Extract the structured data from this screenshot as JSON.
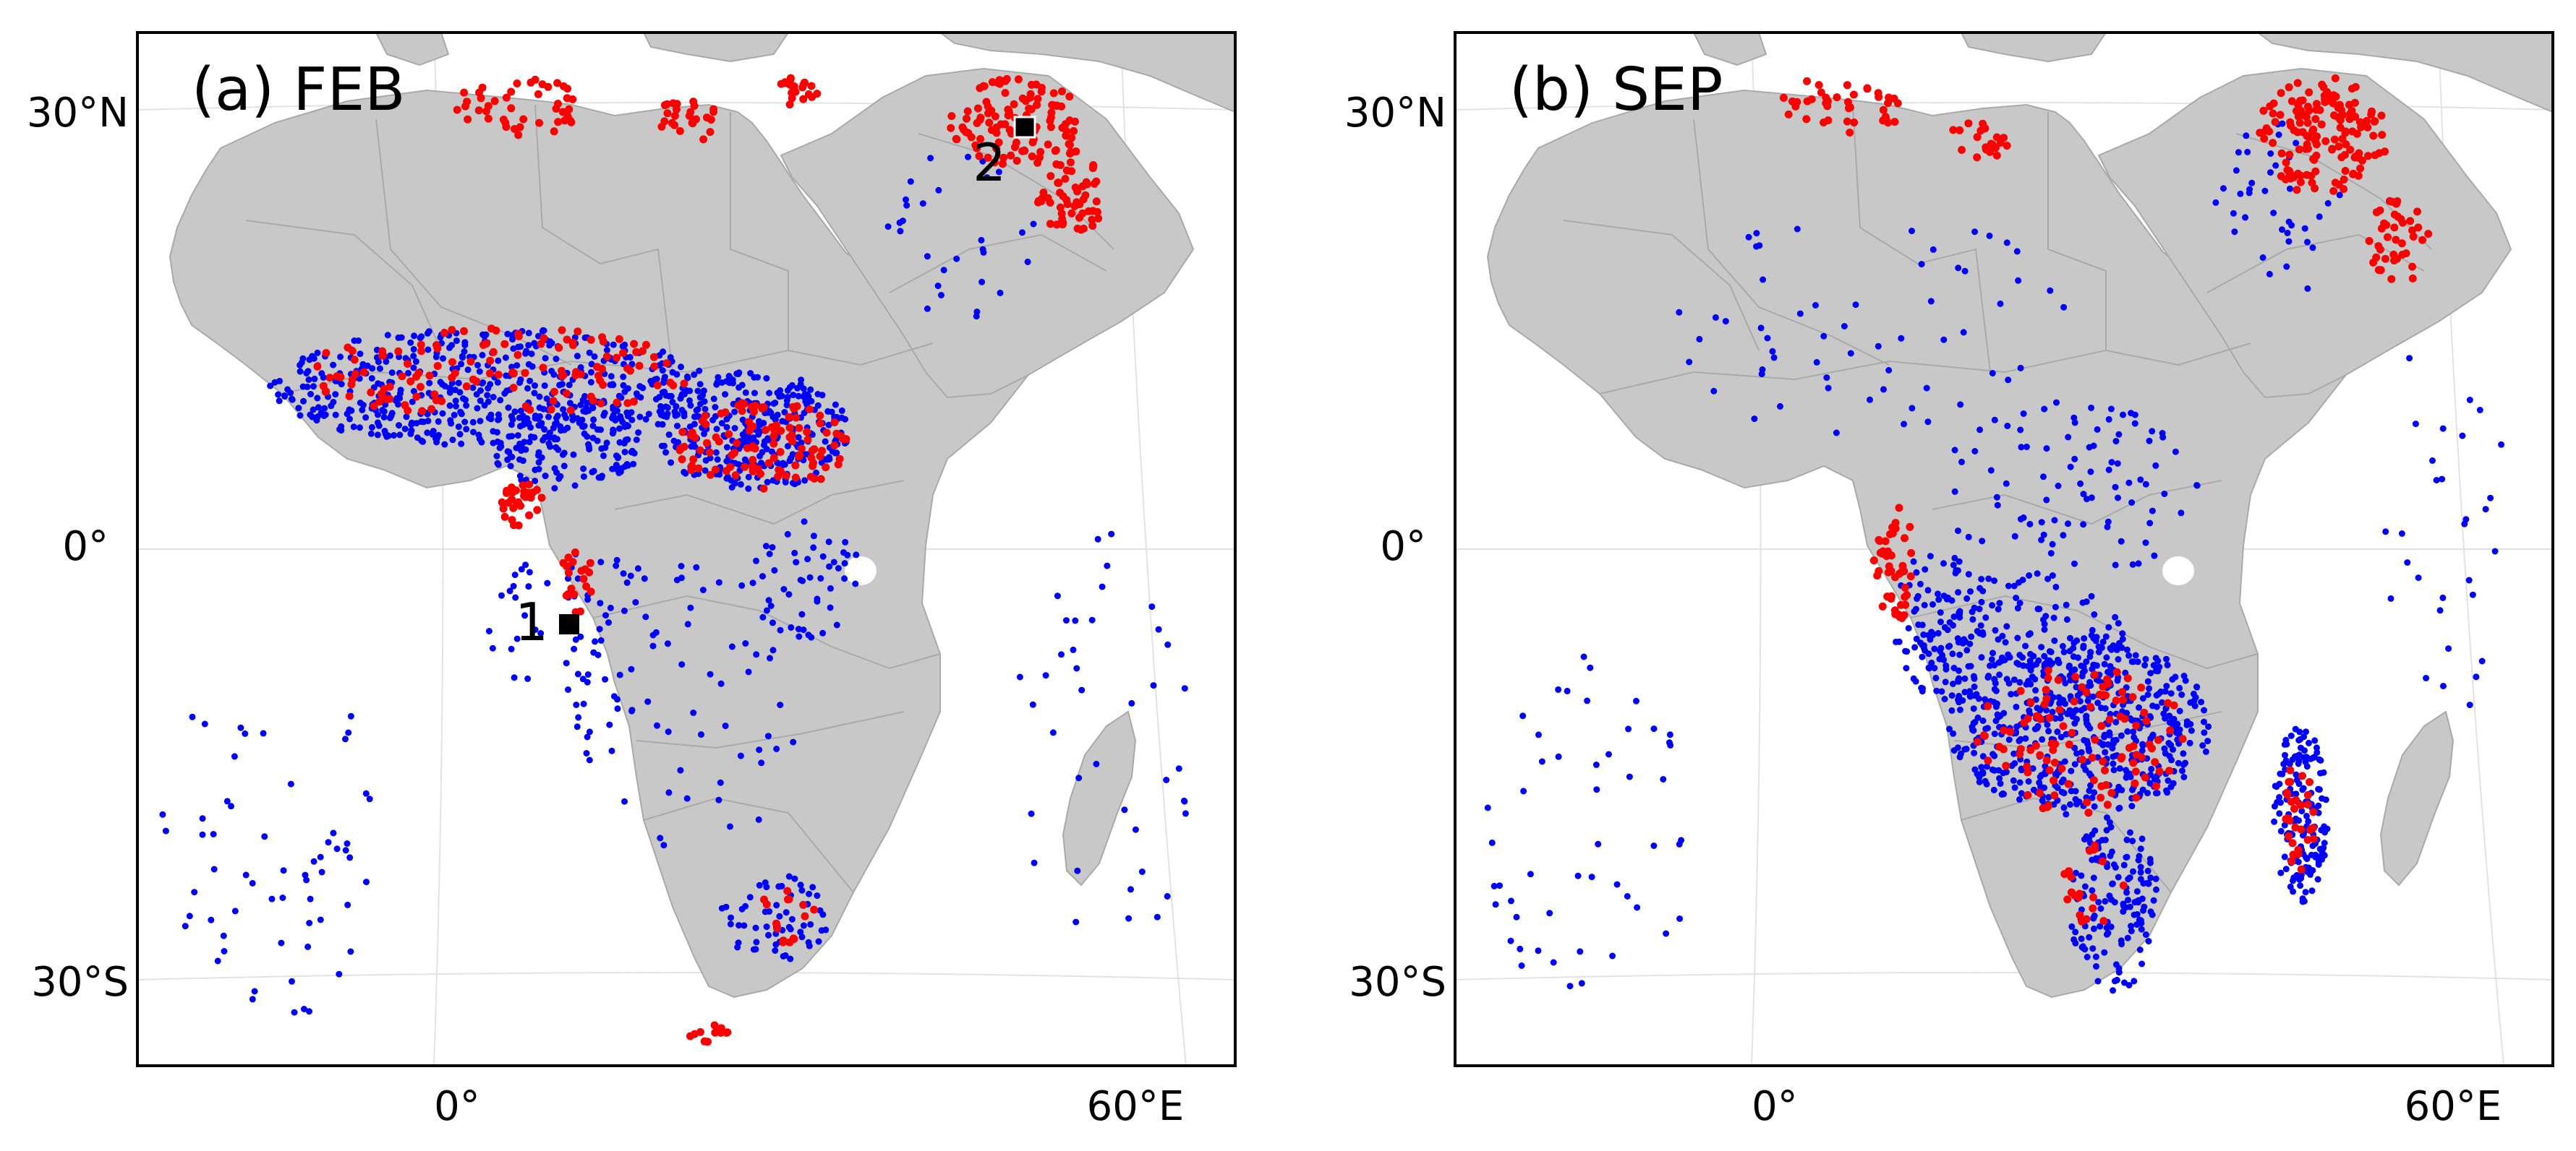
{
  "panels": [
    {
      "id": "a",
      "title": "(a) FEB",
      "lat_labels": [
        "30°N",
        "0°",
        "30°S"
      ],
      "lon_labels": [
        "0°",
        "60°E"
      ],
      "markers": [
        {
          "label": "1",
          "lon": 9.0,
          "lat": -5.0
        },
        {
          "label": "2",
          "lon": 51.0,
          "lat": 29.0
        }
      ]
    },
    {
      "id": "b",
      "title": "(b) SEP",
      "lat_labels": [
        "30°N",
        "0°",
        "30°S"
      ],
      "lon_labels": [
        "0°",
        "60°E"
      ],
      "markers": []
    }
  ],
  "colors": {
    "land": "#c8c8c8",
    "ocean": "#ffffff",
    "border": "#a9a9a9",
    "red_points": "#ff0000",
    "blue_points": "#0000ff",
    "frame": "#000000"
  },
  "extent": {
    "lon_min": -30,
    "lon_max": 70,
    "lat_min": -36,
    "lat_max": 34
  },
  "fire_clusters": {
    "a": [
      {
        "color": "blue",
        "lon": 2,
        "lat": 10,
        "rlon": 20,
        "rlat": 4,
        "n": 520
      },
      {
        "color": "blue",
        "lon": 26,
        "lat": 7,
        "rlon": 9,
        "rlat": 4,
        "n": 320
      },
      {
        "color": "blue",
        "lon": 9,
        "lat": 6,
        "rlon": 7,
        "rlat": 3,
        "n": 140
      },
      {
        "color": "blue",
        "lon": 10,
        "lat": -6,
        "rlon": 8,
        "rlat": 6,
        "n": 60
      },
      {
        "color": "blue",
        "lon": 31,
        "lat": -3,
        "rlon": 5,
        "rlat": 4,
        "n": 50
      },
      {
        "color": "blue",
        "lon": 28,
        "lat": -26,
        "rlon": 5,
        "rlat": 3,
        "n": 60
      },
      {
        "color": "blue",
        "lon": 20,
        "lat": -12,
        "rlon": 10,
        "rlat": 10,
        "n": 60
      },
      {
        "color": "blue",
        "lon": -18,
        "lat": -20,
        "rlon": 10,
        "rlat": 14,
        "n": 60
      },
      {
        "color": "blue",
        "lon": 58,
        "lat": -14,
        "rlon": 8,
        "rlat": 16,
        "n": 40
      },
      {
        "color": "blue",
        "lon": 45,
        "lat": 20,
        "rlon": 8,
        "rlat": 6,
        "n": 30
      },
      {
        "color": "red",
        "lon": 3,
        "lat": 11,
        "rlon": 18,
        "rlat": 3,
        "n": 130
      },
      {
        "color": "red",
        "lon": 27,
        "lat": 6,
        "rlon": 8,
        "rlat": 3,
        "n": 110
      },
      {
        "color": "red",
        "lon": 5,
        "lat": 2,
        "rlon": 2,
        "rlat": 1.5,
        "n": 30
      },
      {
        "color": "red",
        "lon": 10,
        "lat": -3,
        "rlon": 1.5,
        "rlat": 2.5,
        "n": 20
      },
      {
        "color": "red",
        "lon": 50,
        "lat": 28,
        "rlon": 6,
        "rlat": 3,
        "n": 110
      },
      {
        "color": "red",
        "lon": 55,
        "lat": 23,
        "rlon": 3,
        "rlat": 3,
        "n": 60
      },
      {
        "color": "red",
        "lon": 5,
        "lat": 29,
        "rlon": 6,
        "rlat": 2,
        "n": 45
      },
      {
        "color": "red",
        "lon": 20,
        "lat": 28,
        "rlon": 3,
        "rlat": 1.5,
        "n": 25
      },
      {
        "color": "red",
        "lon": 30,
        "lat": 30,
        "rlon": 2,
        "rlat": 1,
        "n": 20
      },
      {
        "color": "red",
        "lon": 29,
        "lat": -26,
        "rlon": 3,
        "rlat": 2,
        "n": 15
      },
      {
        "color": "red",
        "lon": 22,
        "lat": -34,
        "rlon": 2,
        "rlat": 0.8,
        "n": 12
      }
    ],
    "b": [
      {
        "color": "blue",
        "lon": 27,
        "lat": -13,
        "rlon": 12,
        "rlat": 6,
        "n": 520
      },
      {
        "color": "blue",
        "lon": 22,
        "lat": -8,
        "rlon": 9,
        "rlat": 6,
        "n": 160
      },
      {
        "color": "blue",
        "lon": 14,
        "lat": -6,
        "rlon": 4,
        "rlat": 5,
        "n": 90
      },
      {
        "color": "blue",
        "lon": 30,
        "lat": -25,
        "rlon": 4,
        "rlat": 6,
        "n": 150
      },
      {
        "color": "blue",
        "lon": 47,
        "lat": -19,
        "rlon": 2.5,
        "rlat": 6,
        "n": 150
      },
      {
        "color": "blue",
        "lon": 26,
        "lat": 3,
        "rlon": 12,
        "rlat": 6,
        "n": 90
      },
      {
        "color": "blue",
        "lon": 8,
        "lat": 14,
        "rlon": 18,
        "rlat": 8,
        "n": 60
      },
      {
        "color": "blue",
        "lon": 45,
        "lat": 22,
        "rlon": 6,
        "rlat": 6,
        "n": 40
      },
      {
        "color": "blue",
        "lon": -18,
        "lat": -20,
        "rlon": 10,
        "rlat": 12,
        "n": 50
      },
      {
        "color": "blue",
        "lon": 60,
        "lat": 0,
        "rlon": 6,
        "rlat": 14,
        "n": 30
      },
      {
        "color": "red",
        "lon": 49,
        "lat": 27,
        "rlon": 6,
        "rlat": 4,
        "n": 150
      },
      {
        "color": "red",
        "lon": 56,
        "lat": 20,
        "rlon": 3,
        "rlat": 3,
        "n": 40
      },
      {
        "color": "red",
        "lon": 10,
        "lat": -2,
        "rlon": 2,
        "rlat": 4,
        "n": 45
      },
      {
        "color": "red",
        "lon": 5,
        "lat": 29,
        "rlon": 6,
        "rlat": 2,
        "n": 40
      },
      {
        "color": "red",
        "lon": 18,
        "lat": 27,
        "rlon": 3,
        "rlat": 1.5,
        "n": 20
      },
      {
        "color": "red",
        "lon": 27,
        "lat": -14,
        "rlon": 10,
        "rlat": 5,
        "n": 110
      },
      {
        "color": "red",
        "lon": 47,
        "lat": -19,
        "rlon": 1.5,
        "rlat": 4,
        "n": 30
      },
      {
        "color": "red",
        "lon": 28,
        "lat": -24,
        "rlon": 3,
        "rlat": 3,
        "n": 20
      }
    ]
  }
}
